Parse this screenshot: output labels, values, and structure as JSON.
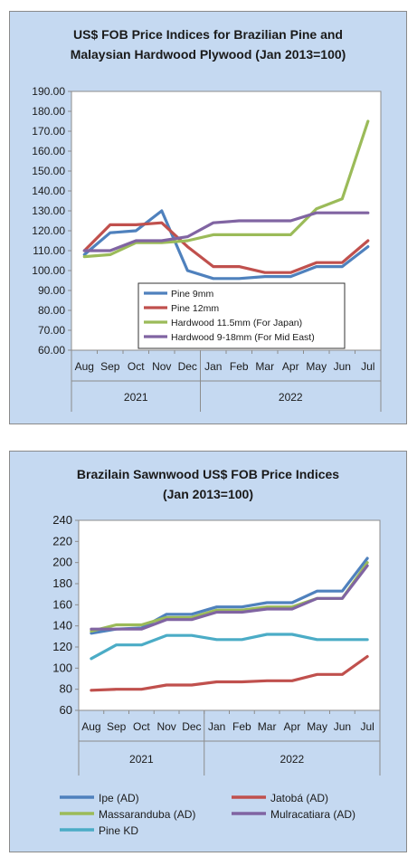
{
  "chart_data": [
    {
      "type": "line",
      "title_line1": "US$ FOB Price Indices for Brazilian Pine and",
      "title_line2": "Malaysian Hardwood Plywood (Jan 2013=100)",
      "categories": [
        "Aug",
        "Sep",
        "Oct",
        "Nov",
        "Dec",
        "Jan",
        "Feb",
        "Mar",
        "Apr",
        "May",
        "Jun",
        "Jul"
      ],
      "year_groups": [
        {
          "label": "2021",
          "from": 0,
          "to": 4
        },
        {
          "label": "2022",
          "from": 5,
          "to": 11
        }
      ],
      "ylim": [
        60,
        190
      ],
      "yticks": [
        "60.00",
        "70.00",
        "80.00",
        "90.00",
        "100.00",
        "110.00",
        "120.00",
        "130.00",
        "140.00",
        "150.00",
        "160.00",
        "170.00",
        "180.00",
        "190.00"
      ],
      "grid": false,
      "legend_position": "inside-bottom-center",
      "series": [
        {
          "name": "Pine 9mm",
          "color": "#4f81bd",
          "values": [
            108,
            119,
            120,
            130,
            100,
            96,
            96,
            97,
            97,
            102,
            102,
            112
          ]
        },
        {
          "name": "Pine 12mm",
          "color": "#c0504d",
          "values": [
            110,
            123,
            123,
            124,
            112,
            102,
            102,
            99,
            99,
            104,
            104,
            115
          ]
        },
        {
          "name": "Hardwood 11.5mm (For Japan)",
          "color": "#9bbb59",
          "values": [
            107,
            108,
            114,
            114,
            115,
            118,
            118,
            118,
            118,
            131,
            136,
            175
          ]
        },
        {
          "name": "Hardwood 9-18mm (For Mid East)",
          "color": "#8064a2",
          "values": [
            110,
            110,
            115,
            115,
            117,
            124,
            125,
            125,
            125,
            129,
            129,
            129
          ]
        }
      ]
    },
    {
      "type": "line",
      "title_line1": "Brazilain Sawnwood US$ FOB Price Indices",
      "title_line2": "(Jan 2013=100)",
      "categories": [
        "Aug",
        "Sep",
        "Oct",
        "Nov",
        "Dec",
        "Jan",
        "Feb",
        "Mar",
        "Apr",
        "May",
        "Jun",
        "Jul"
      ],
      "year_groups": [
        {
          "label": "2021",
          "from": 0,
          "to": 4
        },
        {
          "label": "2022",
          "from": 5,
          "to": 11
        }
      ],
      "ylim": [
        60,
        240
      ],
      "yticks": [
        "60",
        "80",
        "100",
        "120",
        "140",
        "160",
        "180",
        "200",
        "220",
        "240"
      ],
      "grid": false,
      "legend_position": "bottom",
      "series": [
        {
          "name": "Ipe (AD)",
          "color": "#4f81bd",
          "values": [
            133,
            137,
            138,
            151,
            151,
            158,
            158,
            162,
            162,
            173,
            173,
            204
          ]
        },
        {
          "name": "Jatobá (AD)",
          "color": "#c0504d",
          "values": [
            79,
            80,
            80,
            84,
            84,
            87,
            87,
            88,
            88,
            94,
            94,
            111
          ]
        },
        {
          "name": "Massaranduba (AD)",
          "color": "#9bbb59",
          "values": [
            135,
            141,
            141,
            148,
            148,
            155,
            155,
            158,
            158,
            166,
            166,
            200
          ]
        },
        {
          "name": "Mulracatiara (AD)",
          "color": "#8064a2",
          "values": [
            137,
            137,
            137,
            146,
            146,
            153,
            153,
            156,
            156,
            166,
            166,
            197
          ]
        },
        {
          "name": "Pine KD",
          "color": "#4bacc6",
          "values": [
            109,
            122,
            122,
            131,
            131,
            127,
            127,
            132,
            132,
            127,
            127,
            127
          ]
        }
      ]
    }
  ]
}
